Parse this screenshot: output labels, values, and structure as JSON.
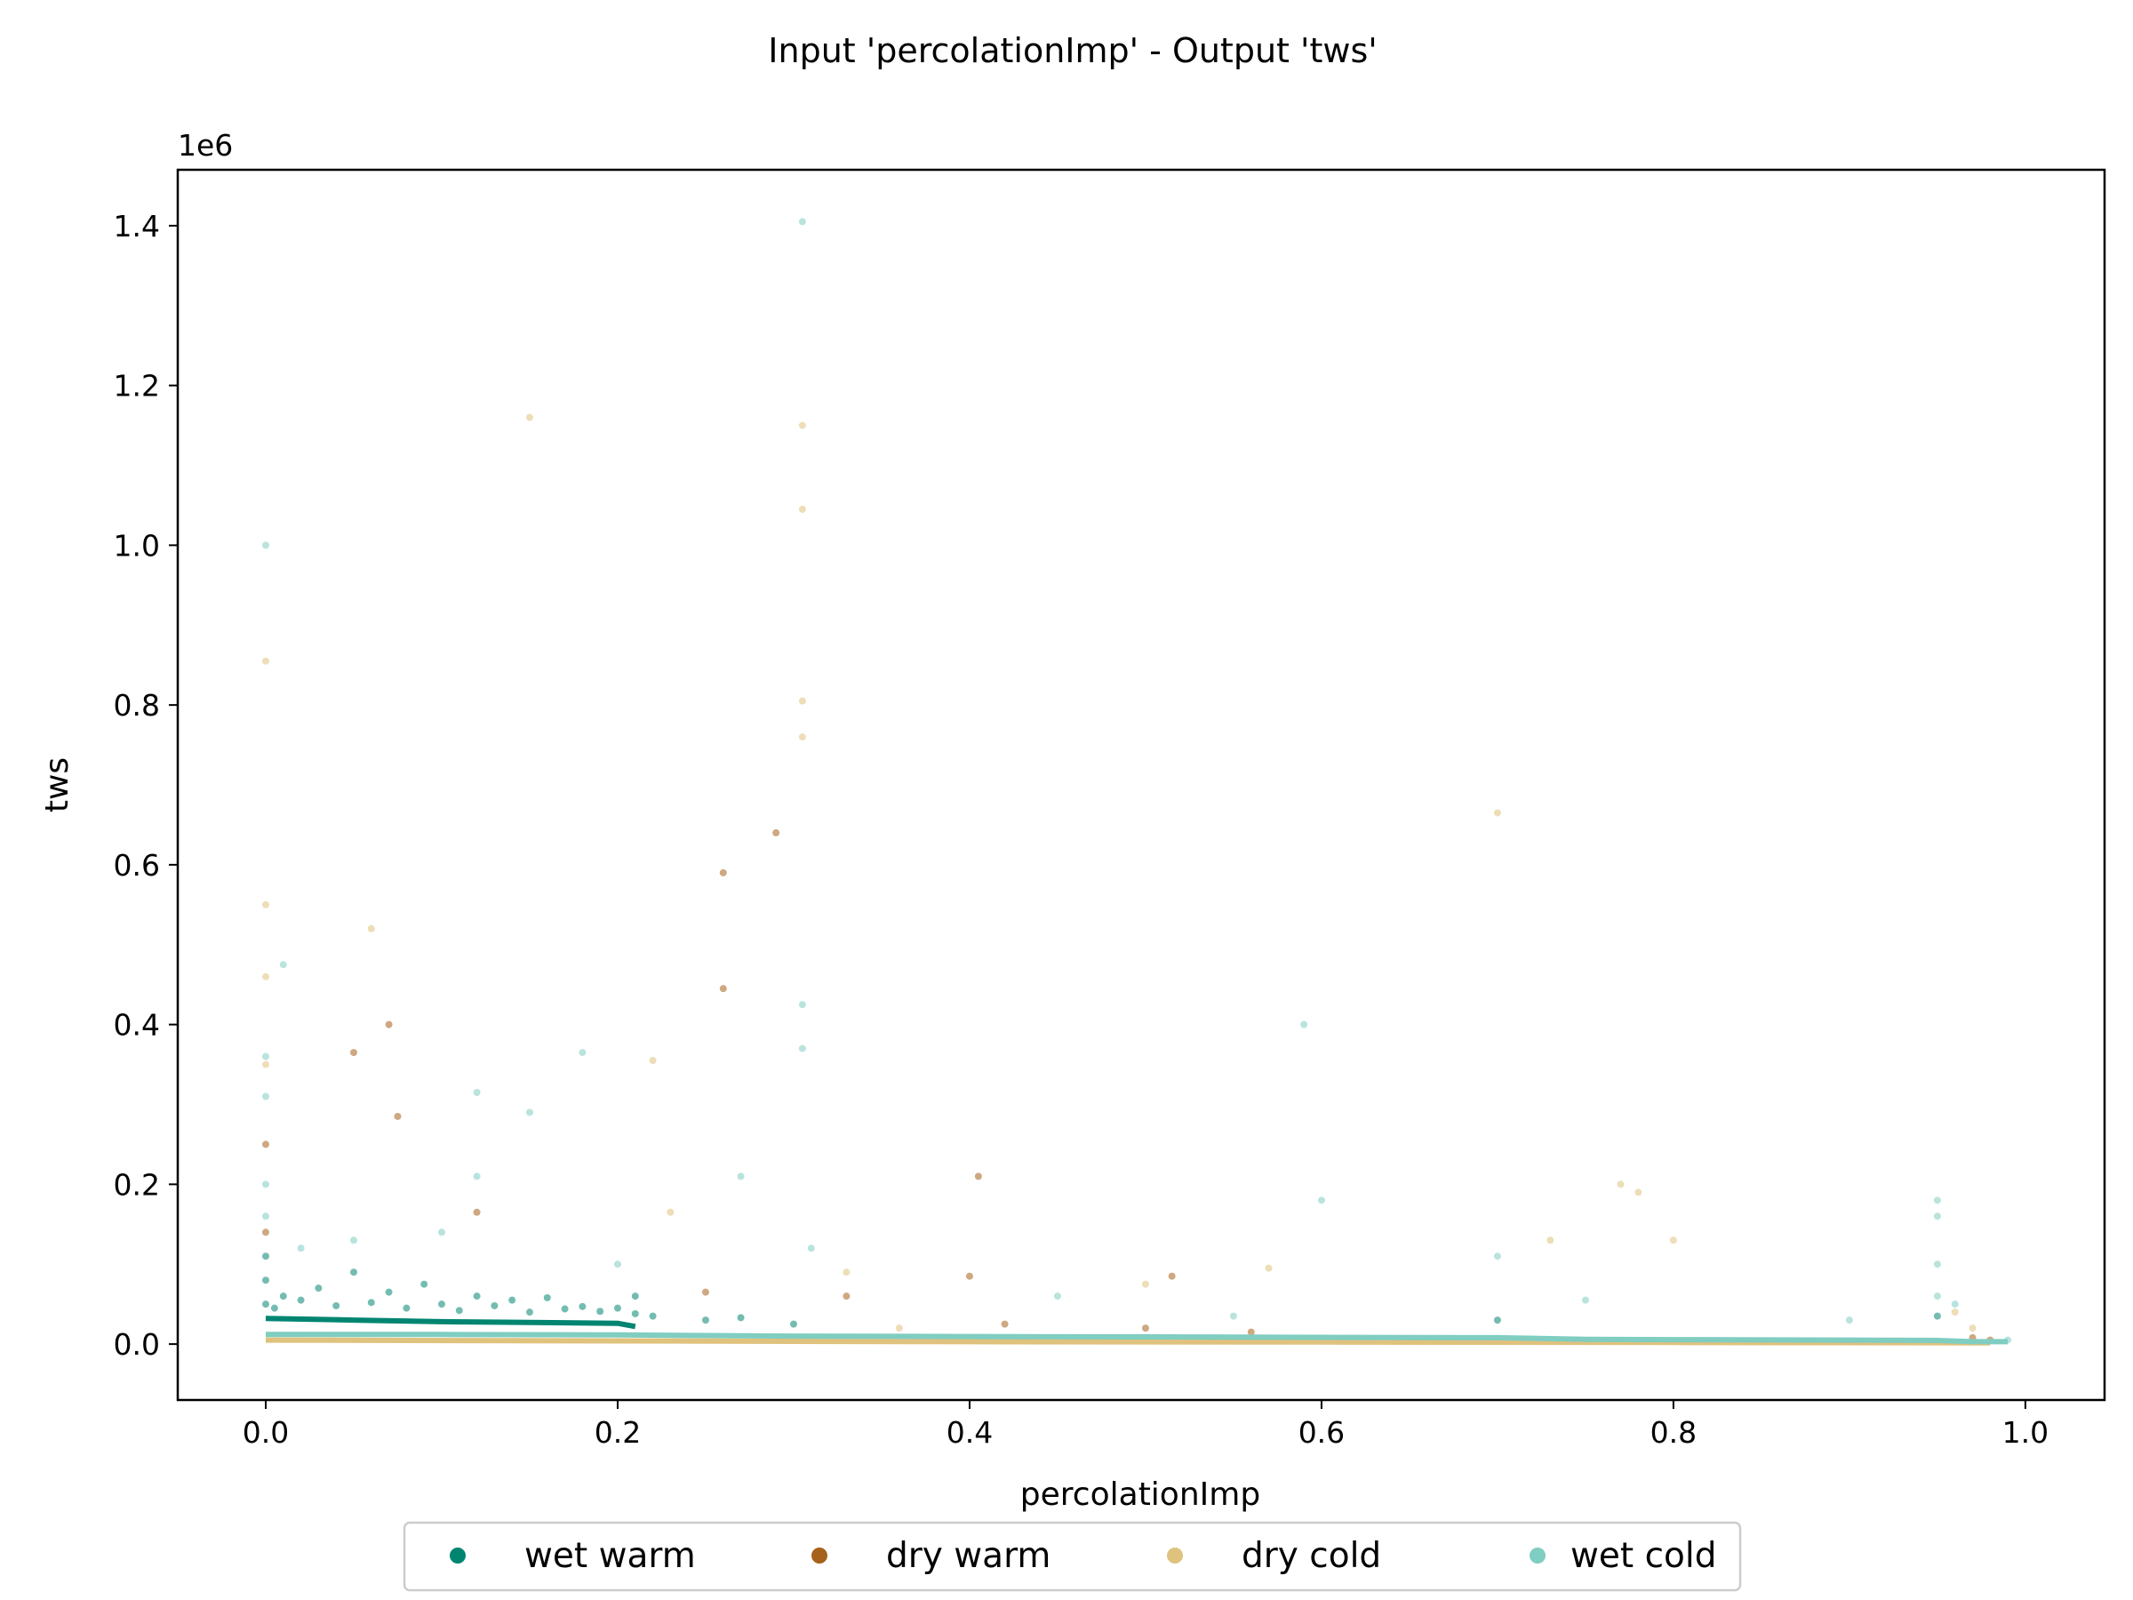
{
  "chart_data": {
    "type": "scatter",
    "title": "Input 'percolationImp' - Output 'tws'",
    "xlabel": "percolationImp",
    "ylabel": "tws",
    "y_offset_label": "1e6",
    "xlim": [
      -0.05,
      1.045
    ],
    "ylim": [
      -70000,
      1470000
    ],
    "x_ticks": [
      0.0,
      0.2,
      0.4,
      0.6,
      0.8,
      1.0
    ],
    "x_tick_labels": [
      "0.0",
      "0.2",
      "0.4",
      "0.6",
      "0.8",
      "1.0"
    ],
    "y_ticks": [
      0,
      200000,
      400000,
      600000,
      800000,
      1000000,
      1200000,
      1400000
    ],
    "y_tick_labels": [
      "0.0",
      "0.2",
      "0.4",
      "0.6",
      "0.8",
      "1.0",
      "1.2",
      "1.4"
    ],
    "grid": false,
    "legend_position": "bottom-center",
    "series": [
      {
        "name": "wet warm",
        "color": "#018571",
        "points": [
          [
            0.0,
            50000
          ],
          [
            0.0,
            80000
          ],
          [
            0.0,
            110000
          ],
          [
            0.005,
            45000
          ],
          [
            0.01,
            60000
          ],
          [
            0.02,
            55000
          ],
          [
            0.03,
            70000
          ],
          [
            0.04,
            48000
          ],
          [
            0.05,
            90000
          ],
          [
            0.06,
            52000
          ],
          [
            0.07,
            65000
          ],
          [
            0.08,
            45000
          ],
          [
            0.09,
            75000
          ],
          [
            0.1,
            50000
          ],
          [
            0.11,
            42000
          ],
          [
            0.12,
            60000
          ],
          [
            0.13,
            48000
          ],
          [
            0.14,
            55000
          ],
          [
            0.15,
            40000
          ],
          [
            0.16,
            58000
          ],
          [
            0.17,
            44000
          ],
          [
            0.18,
            47000
          ],
          [
            0.19,
            41000
          ],
          [
            0.2,
            45000
          ],
          [
            0.21,
            38000
          ],
          [
            0.21,
            60000
          ],
          [
            0.22,
            35000
          ],
          [
            0.25,
            30000
          ],
          [
            0.27,
            33000
          ],
          [
            0.3,
            25000
          ],
          [
            0.7,
            30000
          ],
          [
            0.95,
            35000
          ]
        ],
        "trend": [
          [
            0.0,
            32000
          ],
          [
            0.05,
            30000
          ],
          [
            0.1,
            28000
          ],
          [
            0.15,
            27000
          ],
          [
            0.2,
            26000
          ],
          [
            0.21,
            22000
          ]
        ]
      },
      {
        "name": "dry warm",
        "color": "#a6611a",
        "points": [
          [
            0.0,
            250000
          ],
          [
            0.0,
            140000
          ],
          [
            0.05,
            365000
          ],
          [
            0.07,
            400000
          ],
          [
            0.075,
            285000
          ],
          [
            0.12,
            165000
          ],
          [
            0.25,
            65000
          ],
          [
            0.26,
            590000
          ],
          [
            0.26,
            445000
          ],
          [
            0.29,
            640000
          ],
          [
            0.33,
            60000
          ],
          [
            0.4,
            85000
          ],
          [
            0.405,
            210000
          ],
          [
            0.42,
            25000
          ],
          [
            0.5,
            20000
          ],
          [
            0.515,
            85000
          ],
          [
            0.56,
            15000
          ],
          [
            0.97,
            8000
          ],
          [
            0.98,
            5000
          ]
        ]
      },
      {
        "name": "dry cold",
        "color": "#dfc27d",
        "points": [
          [
            0.0,
            855000
          ],
          [
            0.0,
            550000
          ],
          [
            0.0,
            460000
          ],
          [
            0.0,
            350000
          ],
          [
            0.06,
            520000
          ],
          [
            0.15,
            1160000
          ],
          [
            0.22,
            355000
          ],
          [
            0.23,
            165000
          ],
          [
            0.305,
            1150000
          ],
          [
            0.305,
            1045000
          ],
          [
            0.305,
            805000
          ],
          [
            0.305,
            760000
          ],
          [
            0.33,
            90000
          ],
          [
            0.36,
            20000
          ],
          [
            0.5,
            75000
          ],
          [
            0.57,
            95000
          ],
          [
            0.7,
            665000
          ],
          [
            0.73,
            130000
          ],
          [
            0.77,
            200000
          ],
          [
            0.78,
            190000
          ],
          [
            0.8,
            130000
          ],
          [
            0.96,
            40000
          ],
          [
            0.97,
            20000
          ]
        ],
        "trend": [
          [
            0.0,
            5000
          ],
          [
            0.2,
            4000
          ],
          [
            0.4,
            3000
          ],
          [
            0.6,
            2500
          ],
          [
            0.8,
            2000
          ],
          [
            0.98,
            1500
          ]
        ]
      },
      {
        "name": "wet cold",
        "color": "#80cdc1",
        "points": [
          [
            0.0,
            1000000
          ],
          [
            0.0,
            360000
          ],
          [
            0.0,
            310000
          ],
          [
            0.0,
            200000
          ],
          [
            0.0,
            160000
          ],
          [
            0.01,
            475000
          ],
          [
            0.02,
            120000
          ],
          [
            0.05,
            130000
          ],
          [
            0.1,
            140000
          ],
          [
            0.12,
            315000
          ],
          [
            0.12,
            210000
          ],
          [
            0.15,
            290000
          ],
          [
            0.18,
            365000
          ],
          [
            0.2,
            100000
          ],
          [
            0.27,
            210000
          ],
          [
            0.305,
            1405000
          ],
          [
            0.305,
            425000
          ],
          [
            0.305,
            370000
          ],
          [
            0.31,
            120000
          ],
          [
            0.45,
            60000
          ],
          [
            0.55,
            35000
          ],
          [
            0.59,
            400000
          ],
          [
            0.6,
            180000
          ],
          [
            0.7,
            110000
          ],
          [
            0.75,
            55000
          ],
          [
            0.9,
            30000
          ],
          [
            0.95,
            180000
          ],
          [
            0.95,
            160000
          ],
          [
            0.95,
            100000
          ],
          [
            0.95,
            60000
          ],
          [
            0.96,
            50000
          ],
          [
            0.99,
            5000
          ]
        ],
        "trend": [
          [
            0.0,
            12000
          ],
          [
            0.1,
            12000
          ],
          [
            0.2,
            11500
          ],
          [
            0.3,
            10000
          ],
          [
            0.4,
            9500
          ],
          [
            0.5,
            9000
          ],
          [
            0.6,
            8500
          ],
          [
            0.7,
            8000
          ],
          [
            0.75,
            6000
          ],
          [
            0.8,
            5500
          ],
          [
            0.9,
            5000
          ],
          [
            0.95,
            4500
          ],
          [
            0.97,
            3000
          ],
          [
            0.99,
            3000
          ]
        ]
      }
    ]
  },
  "colors": {
    "axes": "#000000",
    "background": "#ffffff",
    "legend_border": "#cccccc"
  }
}
